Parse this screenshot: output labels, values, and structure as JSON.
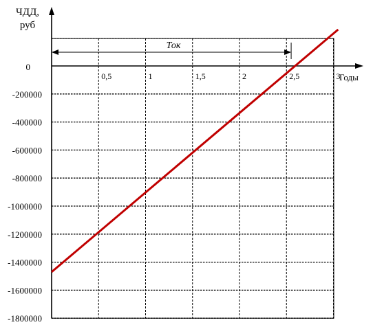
{
  "chart_data": {
    "type": "line",
    "ylabel_line1": "ЧДД,",
    "ylabel_line2": "руб",
    "xlabel": "Годы",
    "y_zero_label": "0",
    "x_ticks": [
      {
        "value": 0.5,
        "label": "0,5"
      },
      {
        "value": 1,
        "label": "1"
      },
      {
        "value": 1.5,
        "label": "1,5"
      },
      {
        "value": 2,
        "label": "2"
      },
      {
        "value": 2.5,
        "label": "2,5"
      },
      {
        "value": 3,
        "label": "3"
      }
    ],
    "y_ticks": [
      {
        "value": -200000,
        "label": "-200000"
      },
      {
        "value": -400000,
        "label": "-400000"
      },
      {
        "value": -600000,
        "label": "-600000"
      },
      {
        "value": -800000,
        "label": "-800000"
      },
      {
        "value": -1000000,
        "label": "-1000000"
      },
      {
        "value": -1200000,
        "label": "-1200000"
      },
      {
        "value": -1400000,
        "label": "-1400000"
      },
      {
        "value": -1600000,
        "label": "-1600000"
      },
      {
        "value": -1800000,
        "label": "-1800000"
      }
    ],
    "xlim": [
      0,
      3.05
    ],
    "ylim": [
      -1800000,
      200000
    ],
    "series": [
      {
        "color": "#c00000",
        "x": [
          0,
          3.05
        ],
        "y": [
          -1470000,
          260000
        ]
      }
    ],
    "annotation": {
      "label": "Ток",
      "x_start": 0,
      "x_end": 2.55
    },
    "grid": true
  }
}
